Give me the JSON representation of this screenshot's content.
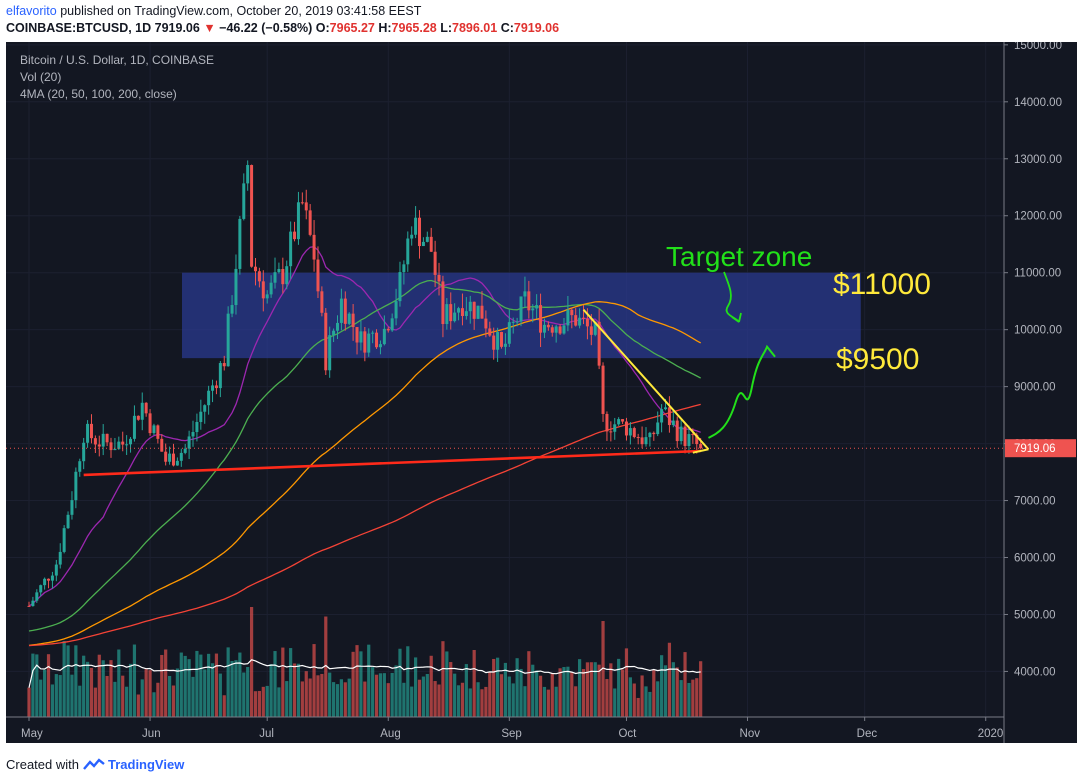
{
  "header": {
    "author": "elfavorito",
    "published_text": "published on TradingView.com, October 20, 2019 03:41:58 EEST",
    "symbol_line": "COINBASE:BTCUSD, 1D",
    "last": "7919.06",
    "change_arrow": "▼",
    "change": "−46.22 (−0.58%)",
    "o_label": "O:",
    "o_val": "7965.27",
    "h_label": "H:",
    "h_val": "7965.28",
    "l_label": "L:",
    "l_val": "7896.01",
    "c_label": "C:",
    "c_val": "7919.06"
  },
  "legend": {
    "title": "Bitcoin / U.S. Dollar, 1D, COINBASE",
    "vol": "Vol (20)",
    "ma": "4MA (20, 50, 100, 200, close)"
  },
  "footer": {
    "created_with": "Created with",
    "brand": "TradingView"
  },
  "colors": {
    "background": "#131722",
    "up": "#26a69a",
    "down": "#ef5350",
    "ma20": "#9c27b0",
    "ma50": "#4caf50",
    "ma100": "#ff9800",
    "ma200": "#f44336",
    "zone": "#2a3a8f",
    "annotation_green": "#22e01a",
    "annotation_yellow": "#ffe93b",
    "last_price_bg": "#ef5350"
  },
  "chart_data": {
    "type": "candlestick",
    "title": "Bitcoin / U.S. Dollar, 1D, COINBASE",
    "y_axis": {
      "ticks": [
        "4000.00",
        "5000.00",
        "6000.00",
        "7000.00",
        "8000.00",
        "9000.00",
        "10000.00",
        "11000.00",
        "12000.00",
        "13000.00",
        "14000.00",
        "15000.00"
      ],
      "range": [
        3200,
        15050
      ]
    },
    "x_axis": {
      "ticks": [
        "May",
        "Jun",
        "Jul",
        "Aug",
        "Sep",
        "Oct",
        "Nov",
        "Dec",
        "2020"
      ]
    },
    "last_price_label": "7919.06",
    "approx_close_series": {
      "start": "2019-05-01",
      "points": [
        [
          "2019-05-01",
          5150
        ],
        [
          "2019-05-08",
          5900
        ],
        [
          "2019-05-12",
          7100
        ],
        [
          "2019-05-15",
          8200
        ],
        [
          "2019-05-20",
          8000
        ],
        [
          "2019-05-25",
          8000
        ],
        [
          "2019-05-30",
          8700
        ],
        [
          "2019-06-05",
          7700
        ],
        [
          "2019-06-10",
          7900
        ],
        [
          "2019-06-15",
          8700
        ],
        [
          "2019-06-20",
          9500
        ],
        [
          "2019-06-22",
          10600
        ],
        [
          "2019-06-26",
          12900
        ],
        [
          "2019-06-27",
          11200
        ],
        [
          "2019-07-01",
          10600
        ],
        [
          "2019-07-05",
          11000
        ],
        [
          "2019-07-10",
          12200
        ],
        [
          "2019-07-13",
          11300
        ],
        [
          "2019-07-16",
          9500
        ],
        [
          "2019-07-20",
          10500
        ],
        [
          "2019-07-25",
          9800
        ],
        [
          "2019-07-31",
          10000
        ],
        [
          "2019-08-04",
          10800
        ],
        [
          "2019-08-07",
          11900
        ],
        [
          "2019-08-12",
          11400
        ],
        [
          "2019-08-15",
          10200
        ],
        [
          "2019-08-20",
          10500
        ],
        [
          "2019-08-25",
          10300
        ],
        [
          "2019-08-30",
          9600
        ],
        [
          "2019-09-05",
          10500
        ],
        [
          "2019-09-10",
          10100
        ],
        [
          "2019-09-18",
          10200
        ],
        [
          "2019-09-23",
          9900
        ],
        [
          "2019-09-25",
          8400
        ],
        [
          "2019-10-01",
          8300
        ],
        [
          "2019-10-07",
          8000
        ],
        [
          "2019-10-10",
          8600
        ],
        [
          "2019-10-15",
          8150
        ],
        [
          "2019-10-20",
          7919
        ]
      ]
    },
    "moving_averages": [
      {
        "name": "MA 20"
      },
      {
        "name": "MA 50"
      },
      {
        "name": "MA 100"
      },
      {
        "name": "MA 200"
      }
    ],
    "volume_label": "Vol (20)"
  },
  "annotations": {
    "zone_low": 9500,
    "zone_high": 11000,
    "zone_end": "2019-11-30",
    "target_text": "Target zone",
    "label_high": "$11000",
    "label_low": "$9500",
    "support_line": [
      [
        "2019-05-15",
        7450
      ],
      [
        "2019-10-20",
        7870
      ]
    ],
    "triangle_line": [
      [
        "2019-09-20",
        10350
      ],
      [
        "2019-10-22",
        7900
      ]
    ],
    "projection": [
      [
        "2019-10-22",
        8100
      ],
      [
        "2019-10-30",
        8800
      ],
      [
        "2019-11-06",
        9700
      ]
    ]
  }
}
